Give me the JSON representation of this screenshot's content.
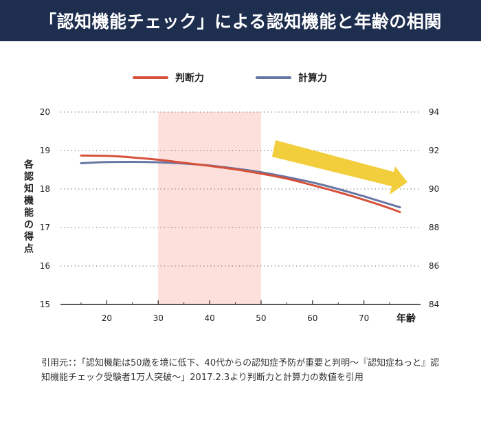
{
  "header": {
    "title": "「認知機能チェック」による認知機能と年齢の相関"
  },
  "chart_data": {
    "type": "line",
    "ylabel": "各認知機能の得点",
    "xlabel": "年齢",
    "xlim": [
      11,
      81
    ],
    "ylim": [
      15,
      20
    ],
    "y2lim": [
      84,
      94
    ],
    "x_ticks": [
      20,
      30,
      40,
      50,
      60,
      70
    ],
    "y_ticks": [
      15,
      16,
      17,
      18,
      19,
      20
    ],
    "y2_ticks": [
      84,
      86,
      88,
      90,
      92,
      94
    ],
    "highlight_band": {
      "x_from": 30,
      "x_to": 50,
      "color": "#fde0db"
    },
    "trend_arrow_color": "#f2ce3c",
    "grid": "horizontal-dotted",
    "legend_position": "top-center",
    "series": [
      {
        "name": "判断力",
        "axis": "left",
        "color": "#d6503a",
        "x": [
          15,
          20,
          25,
          30,
          35,
          40,
          45,
          50,
          55,
          60,
          65,
          70,
          75,
          77
        ],
        "y": [
          18.87,
          18.86,
          18.82,
          18.76,
          18.68,
          18.6,
          18.51,
          18.4,
          18.27,
          18.1,
          17.92,
          17.72,
          17.5,
          17.4
        ]
      },
      {
        "name": "計算力",
        "axis": "right",
        "color": "#6776a3",
        "x": [
          15,
          20,
          25,
          30,
          35,
          40,
          45,
          50,
          55,
          60,
          65,
          70,
          75,
          77
        ],
        "y": [
          91.34,
          91.4,
          91.41,
          91.39,
          91.32,
          91.22,
          91.06,
          90.87,
          90.62,
          90.34,
          90.0,
          89.62,
          89.21,
          89.05
        ]
      }
    ]
  },
  "citation": {
    "text": "引用元：：「認知機能は50歳を境に低下、40代からの認知症予防が重要と判明〜『認知症ねっと』認知機能チェック受験者1万人突破〜」2017.2.3より判断力と計算力の数値を引用"
  }
}
